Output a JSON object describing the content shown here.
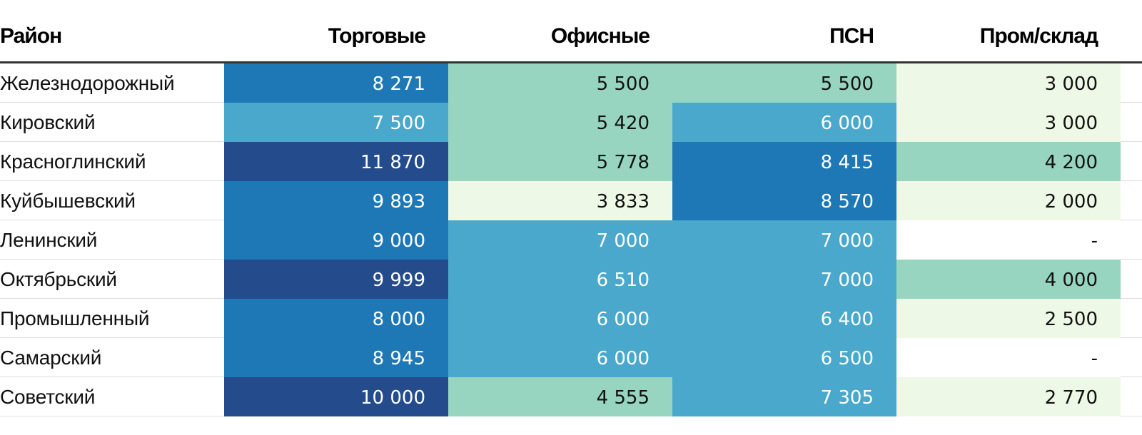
{
  "colors": {
    "very_light": "#eef8e6",
    "light": "#97d5c0",
    "medium": "#49a8cb",
    "strong": "#1f78b6",
    "darkest": "#244b8c",
    "blank": "#ffffff",
    "text_dark": "#111111",
    "text_light": "#ffffff"
  },
  "chart_data": {
    "type": "table",
    "columns": [
      "Район",
      "Торговые",
      "Офисные",
      "ПСН",
      "Пром/склад"
    ],
    "rows": [
      {
        "district": "Железнодорожный",
        "values": [
          "8 271",
          "5 500",
          "5 500",
          "3 000"
        ],
        "levels": [
          "strong",
          "light",
          "light",
          "very_light"
        ]
      },
      {
        "district": "Кировский",
        "values": [
          "7 500",
          "5 420",
          "6 000",
          "3 000"
        ],
        "levels": [
          "medium",
          "light",
          "medium",
          "very_light"
        ]
      },
      {
        "district": "Красноглинский",
        "values": [
          "11 870",
          "5 778",
          "8 415",
          "4 200"
        ],
        "levels": [
          "darkest",
          "light",
          "strong",
          "light"
        ]
      },
      {
        "district": "Куйбышевский",
        "values": [
          "9 893",
          "3 833",
          "8 570",
          "2 000"
        ],
        "levels": [
          "strong",
          "very_light",
          "strong",
          "very_light"
        ]
      },
      {
        "district": "Ленинский",
        "values": [
          "9 000",
          "7 000",
          "7 000",
          "-"
        ],
        "levels": [
          "strong",
          "medium",
          "medium",
          "blank"
        ]
      },
      {
        "district": "Октябрьский",
        "values": [
          "9 999",
          "6 510",
          "7 000",
          "4 000"
        ],
        "levels": [
          "darkest",
          "medium",
          "medium",
          "light"
        ]
      },
      {
        "district": "Промышленный",
        "values": [
          "8 000",
          "6 000",
          "6 400",
          "2 500"
        ],
        "levels": [
          "strong",
          "medium",
          "medium",
          "very_light"
        ]
      },
      {
        "district": "Самарский",
        "values": [
          "8 945",
          "6 000",
          "6 500",
          "-"
        ],
        "levels": [
          "strong",
          "medium",
          "medium",
          "blank"
        ]
      },
      {
        "district": "Советский",
        "values": [
          "10 000",
          "4 555",
          "7 305",
          "2 770"
        ],
        "levels": [
          "darkest",
          "light",
          "medium",
          "very_light"
        ]
      }
    ]
  }
}
